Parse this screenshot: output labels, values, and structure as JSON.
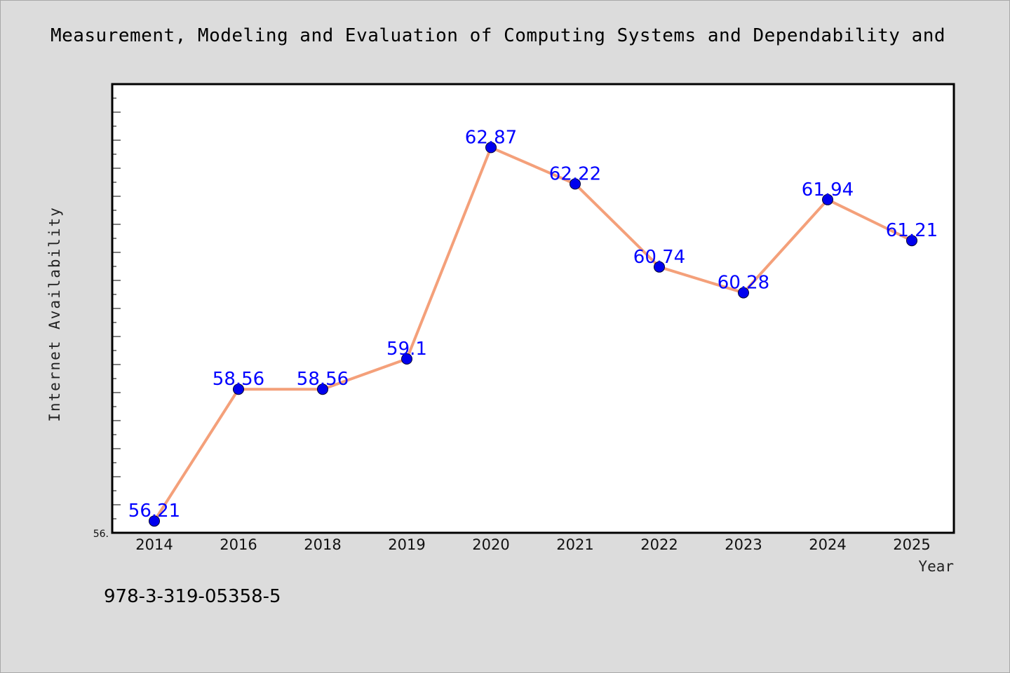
{
  "chart_data": {
    "type": "line",
    "title": "Measurement, Modeling and Evaluation of Computing Systems and Dependability and",
    "xlabel": "Year",
    "ylabel": "Internet Availability",
    "categories": [
      "2014",
      "2016",
      "2018",
      "2019",
      "2020",
      "2021",
      "2022",
      "2023",
      "2024",
      "2025"
    ],
    "series": [
      {
        "values": [
          56.21,
          58.56,
          58.56,
          59.1,
          62.87,
          62.22,
          60.74,
          60.28,
          61.94,
          61.21
        ],
        "data_labels": [
          "56.21",
          "58.56",
          "58.56",
          "59.1",
          "62.87",
          "62.22",
          "60.74",
          "60.28",
          "61.94",
          "61.21"
        ]
      }
    ],
    "ylim": [
      56,
      64
    ],
    "y_min_label": "56.",
    "grid": false,
    "line_color": "#f4a07a",
    "marker_color": "#0000ee",
    "label_color": "#0000ff"
  },
  "footnote": "978-3-319-05358-5"
}
